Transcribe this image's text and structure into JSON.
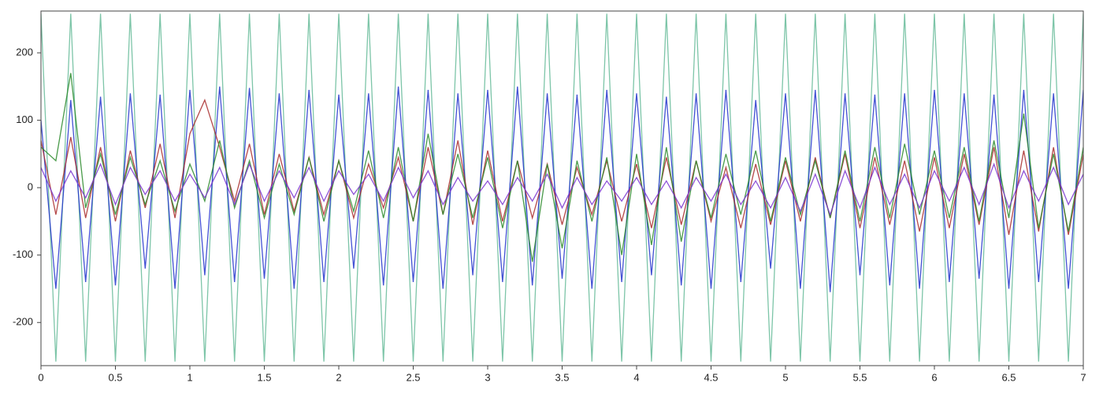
{
  "chart_data": {
    "type": "line",
    "x": [
      0,
      0.1,
      0.2,
      0.3,
      0.4,
      0.5,
      0.6,
      0.7,
      0.8,
      0.9,
      1,
      1.1,
      1.2,
      1.3,
      1.4,
      1.5,
      1.6,
      1.7,
      1.8,
      1.9,
      2,
      2.1,
      2.2,
      2.3,
      2.4,
      2.5,
      2.6,
      2.7,
      2.8,
      2.9,
      3,
      3.1,
      3.2,
      3.3,
      3.4,
      3.5,
      3.6,
      3.7,
      3.8,
      3.9,
      4,
      4.1,
      4.2,
      4.3,
      4.4,
      4.5,
      4.6,
      4.7,
      4.8,
      4.9,
      5,
      5.1,
      5.2,
      5.3,
      5.4,
      5.5,
      5.6,
      5.7,
      5.8,
      5.9,
      6,
      6.1,
      6.2,
      6.3,
      6.4,
      6.5,
      6.6,
      6.7,
      6.8,
      6.9,
      7
    ],
    "series": [
      {
        "color": "#6fbf9f",
        "values": [
          258,
          -258,
          258,
          -258,
          258,
          -258,
          258,
          -258,
          258,
          -258,
          258,
          -258,
          258,
          -258,
          258,
          -258,
          258,
          -258,
          258,
          -258,
          258,
          -258,
          258,
          -258,
          258,
          -258,
          258,
          -258,
          258,
          -258,
          258,
          -258,
          258,
          -258,
          258,
          -258,
          258,
          -258,
          258,
          -258,
          258,
          -258,
          258,
          -258,
          258,
          -258,
          258,
          -258,
          258,
          -258,
          258,
          -258,
          258,
          -258,
          258,
          -258,
          258,
          -258,
          258,
          -258,
          258,
          -258,
          258,
          -258,
          258,
          -258,
          258,
          -258,
          258,
          -258,
          258
        ]
      },
      {
        "color": "#2233cc",
        "values": [
          100,
          -150,
          130,
          -140,
          135,
          -145,
          140,
          -120,
          138,
          -150,
          145,
          -130,
          150,
          -140,
          148,
          -135,
          140,
          -150,
          145,
          -140,
          138,
          -120,
          140,
          -145,
          150,
          -140,
          145,
          -150,
          140,
          -130,
          145,
          -140,
          150,
          -145,
          140,
          -135,
          138,
          -150,
          145,
          -140,
          140,
          -130,
          135,
          -145,
          140,
          -150,
          145,
          -140,
          130,
          -120,
          140,
          -150,
          145,
          -155,
          140,
          -130,
          138,
          -145,
          140,
          -150,
          145,
          -140,
          140,
          -135,
          138,
          -150,
          145,
          -140,
          140,
          -150,
          145
        ]
      },
      {
        "color": "#a82a2a",
        "values": [
          70,
          -40,
          75,
          -45,
          60,
          -50,
          55,
          -30,
          65,
          -45,
          80,
          130,
          60,
          -20,
          65,
          -40,
          50,
          -35,
          45,
          -40,
          40,
          -45,
          35,
          -30,
          45,
          -50,
          60,
          -40,
          70,
          -55,
          55,
          -50,
          40,
          -45,
          35,
          -55,
          30,
          -40,
          40,
          -50,
          35,
          -60,
          45,
          -55,
          40,
          -50,
          30,
          -60,
          35,
          -55,
          40,
          -50,
          45,
          -45,
          50,
          -60,
          45,
          -55,
          40,
          -65,
          45,
          -60,
          50,
          -55,
          60,
          -70,
          55,
          -65,
          60,
          -70,
          50
        ]
      },
      {
        "color": "#2a8a2a",
        "values": [
          60,
          40,
          170,
          -30,
          50,
          -40,
          45,
          -25,
          40,
          -35,
          35,
          -20,
          70,
          -30,
          40,
          -45,
          35,
          -40,
          45,
          -50,
          40,
          -35,
          55,
          -45,
          60,
          -50,
          80,
          -40,
          50,
          -45,
          45,
          -60,
          40,
          -110,
          35,
          -90,
          40,
          -50,
          45,
          -100,
          50,
          -85,
          60,
          -80,
          40,
          -45,
          50,
          -40,
          55,
          -50,
          45,
          -40,
          40,
          -45,
          55,
          -50,
          60,
          -45,
          65,
          -40,
          55,
          -45,
          60,
          -50,
          70,
          -45,
          110,
          -60,
          50,
          -65,
          60
        ]
      },
      {
        "color": "#7a35d0",
        "values": [
          30,
          -20,
          25,
          -15,
          35,
          -25,
          30,
          -10,
          25,
          -20,
          20,
          -15,
          30,
          -25,
          35,
          -20,
          25,
          -15,
          30,
          -20,
          25,
          -10,
          20,
          -20,
          30,
          -15,
          25,
          -25,
          15,
          -20,
          10,
          -25,
          15,
          -20,
          20,
          -30,
          15,
          -25,
          10,
          -20,
          15,
          -25,
          10,
          -30,
          15,
          -20,
          20,
          -25,
          10,
          -30,
          15,
          -35,
          20,
          -40,
          25,
          -30,
          30,
          -25,
          20,
          -30,
          25,
          -20,
          30,
          -25,
          35,
          -30,
          25,
          -20,
          30,
          -25,
          20
        ]
      }
    ],
    "xlim": [
      0,
      7
    ],
    "xticks": [
      0,
      0.5,
      1,
      1.5,
      2,
      2.5,
      3,
      3.5,
      4,
      4.5,
      5,
      5.5,
      6,
      6.5,
      7
    ],
    "ylim": [
      -264,
      262
    ],
    "yticks": [
      -200,
      -100,
      0,
      100,
      200
    ]
  }
}
